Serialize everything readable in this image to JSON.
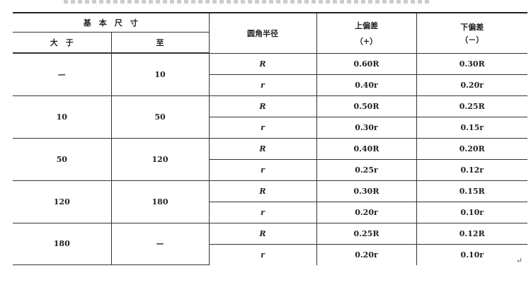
{
  "header": {
    "basic_size": "基　本　尺　寸",
    "greater_than": "大　于",
    "up_to": "至",
    "radius": "圆角半径",
    "upper": "上偏差",
    "upper_sign": "（+）",
    "lower": "下偏差",
    "lower_sign": "（－）"
  },
  "rows": [
    {
      "from": "—",
      "to": "10",
      "items": [
        {
          "r": "R",
          "up": "0.60R",
          "low": "0.30R"
        },
        {
          "r": "r",
          "up": "0.40r",
          "low": "0.20r"
        }
      ]
    },
    {
      "from": "10",
      "to": "50",
      "items": [
        {
          "r": "R",
          "up": "0.50R",
          "low": "0.25R"
        },
        {
          "r": "r",
          "up": "0.30r",
          "low": "0.15r"
        }
      ]
    },
    {
      "from": "50",
      "to": "120",
      "items": [
        {
          "r": "R",
          "up": "0.40R",
          "low": "0.20R"
        },
        {
          "r": "r",
          "up": "0.25r",
          "low": "0.12r"
        }
      ]
    },
    {
      "from": "120",
      "to": "180",
      "items": [
        {
          "r": "R",
          "up": "0.30R",
          "low": "0.15R"
        },
        {
          "r": "r",
          "up": "0.20r",
          "low": "0.10r"
        }
      ]
    },
    {
      "from": "180",
      "to": "—",
      "items": [
        {
          "r": "R",
          "up": "0.25R",
          "low": "0.12R"
        },
        {
          "r": "r",
          "up": "0.20r",
          "low": "0.10r"
        }
      ]
    }
  ],
  "return_mark": "↵"
}
